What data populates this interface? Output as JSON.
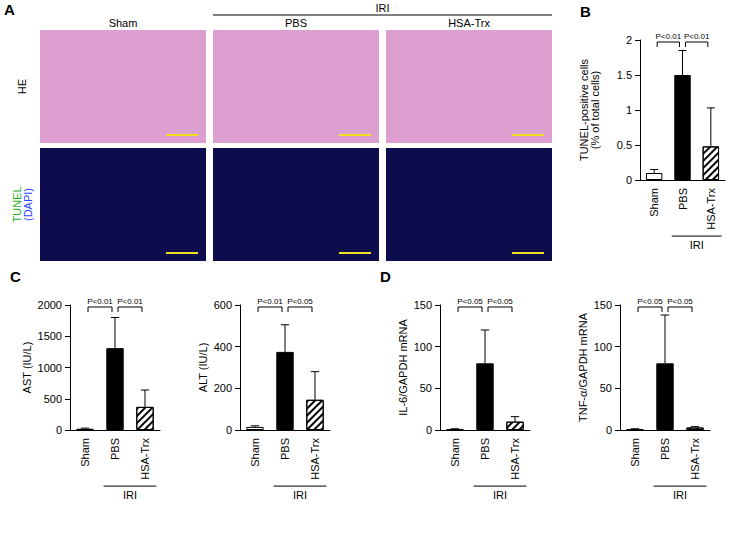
{
  "panel_a": {
    "panel": "A",
    "group": "IRI",
    "columns": [
      "Sham",
      "PBS",
      "HSA-Trx"
    ],
    "rows": [
      [
        "HE"
      ],
      [
        "TUNEL",
        "(DAPI)"
      ]
    ]
  },
  "chart_data": [
    {
      "panel": "B",
      "type": "bar",
      "categories": [
        "Sham",
        "PBS",
        "HSA-Trx"
      ],
      "values": [
        0.1,
        1.5,
        0.48
      ],
      "errors": [
        0.05,
        0.35,
        0.55
      ],
      "colors": [
        "#ffffff",
        "#000000",
        "#ffffff"
      ],
      "ylabel": [
        "TUNEL-positive cells",
        "(% of total cells)"
      ],
      "ylim": [
        0,
        2
      ],
      "yticks": [
        0,
        0.5,
        1,
        1.5,
        2
      ],
      "grid": false,
      "group": {
        "label": "IRI",
        "categories": [
          "PBS",
          "HSA-Trx"
        ]
      },
      "comparisons": [
        {
          "between": [
            "Sham",
            "PBS"
          ],
          "label": "P<0.01"
        },
        {
          "between": [
            "PBS",
            "HSA-Trx"
          ],
          "label": "P<0.01"
        }
      ]
    },
    {
      "panel": "C",
      "type": "bar",
      "categories": [
        "Sham",
        "PBS",
        "HSA-Trx"
      ],
      "values": [
        20,
        1310,
        370
      ],
      "errors": [
        10,
        490,
        270
      ],
      "colors": [
        "#ffffff",
        "#000000",
        "#ffffff"
      ],
      "ylabel": "AST (IU/L)",
      "ylim": [
        0,
        2000
      ],
      "yticks": [
        0,
        500,
        1000,
        1500,
        2000
      ],
      "grid": false,
      "group": {
        "label": "IRI",
        "categories": [
          "PBS",
          "HSA-Trx"
        ]
      },
      "comparisons": [
        {
          "between": [
            "Sham",
            "PBS"
          ],
          "label": "P<0.01"
        },
        {
          "between": [
            "PBS",
            "HSA-Trx"
          ],
          "label": "P<0.01"
        }
      ]
    },
    {
      "type": "bar",
      "categories": [
        "Sham",
        "PBS",
        "HSA-Trx"
      ],
      "values": [
        15,
        375,
        145
      ],
      "errors": [
        5,
        130,
        135
      ],
      "colors": [
        "#ffffff",
        "#000000",
        "#ffffff"
      ],
      "ylabel": "ALT (IU/L)",
      "ylim": [
        0,
        600
      ],
      "yticks": [
        0,
        200,
        400,
        600
      ],
      "grid": false,
      "group": {
        "label": "IRI",
        "categories": [
          "PBS",
          "HSA-Trx"
        ]
      },
      "comparisons": [
        {
          "between": [
            "Sham",
            "PBS"
          ],
          "label": "P<0.01"
        },
        {
          "between": [
            "PBS",
            "HSA-Trx"
          ],
          "label": "P<0.05"
        }
      ]
    },
    {
      "panel": "D",
      "type": "bar",
      "categories": [
        "Sham",
        "PBS",
        "HSA-Trx"
      ],
      "values": [
        1,
        80,
        10
      ],
      "errors": [
        0.5,
        40,
        6
      ],
      "colors": [
        "#ffffff",
        "#000000",
        "#ffffff"
      ],
      "ylabel": "IL-6/GAPDH mRNA",
      "ylim": [
        0,
        150
      ],
      "yticks": [
        0,
        50,
        100,
        150
      ],
      "grid": false,
      "group": {
        "label": "IRI",
        "categories": [
          "PBS",
          "HSA-Trx"
        ]
      },
      "comparisons": [
        {
          "between": [
            "Sham",
            "PBS"
          ],
          "label": "P<0.05"
        },
        {
          "between": [
            "PBS",
            "HSA-Trx"
          ],
          "label": "P<0.05"
        }
      ]
    },
    {
      "type": "bar",
      "categories": [
        "Sham",
        "PBS",
        "HSA-Trx"
      ],
      "values": [
        1,
        80,
        3
      ],
      "errors": [
        0.5,
        58,
        1
      ],
      "colors": [
        "#ffffff",
        "#000000",
        "#ffffff"
      ],
      "ylabel": "TNF-α/GAPDH mRNA",
      "ylim": [
        0,
        150
      ],
      "yticks": [
        0,
        50,
        100,
        150
      ],
      "grid": false,
      "group": {
        "label": "IRI",
        "categories": [
          "PBS",
          "HSA-Trx"
        ]
      },
      "comparisons": [
        {
          "between": [
            "Sham",
            "PBS"
          ],
          "label": "P<0.05"
        },
        {
          "between": [
            "PBS",
            "HSA-Trx"
          ],
          "label": "P<0.05"
        }
      ]
    }
  ]
}
